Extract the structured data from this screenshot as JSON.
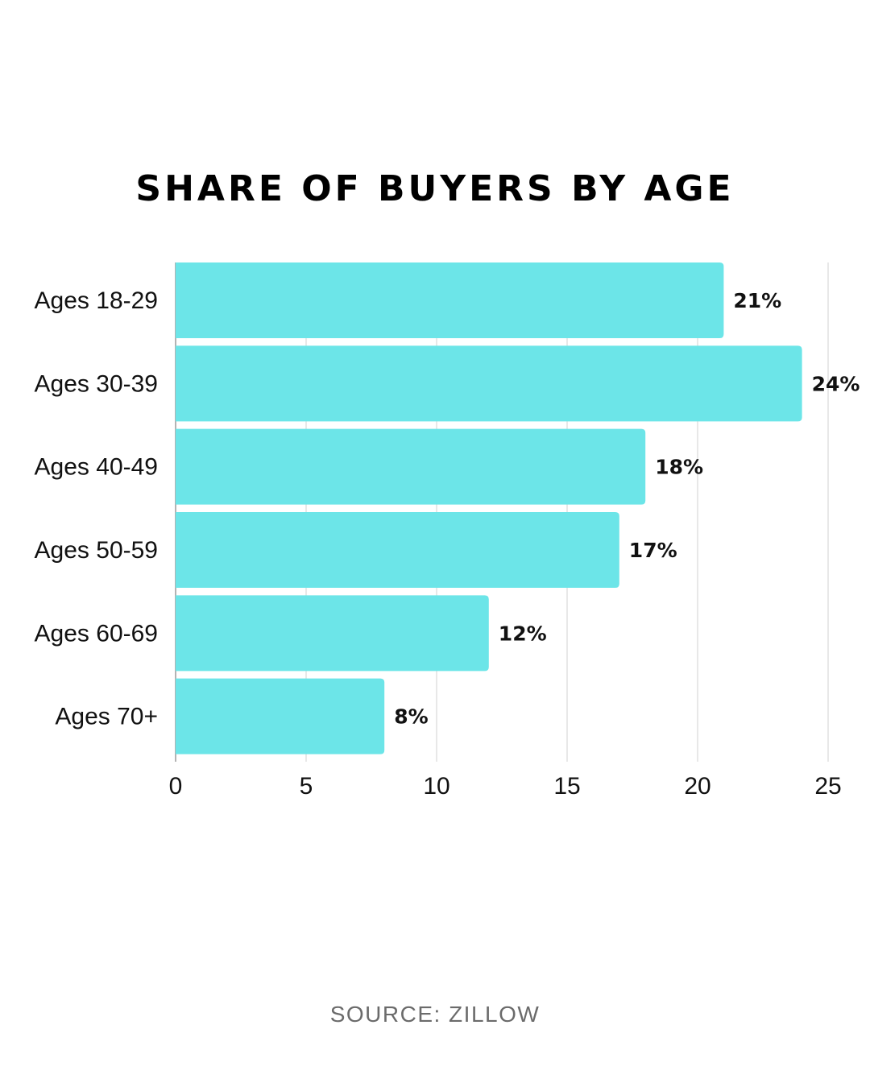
{
  "chart_data": {
    "type": "bar",
    "orientation": "horizontal",
    "title": "SHARE OF BUYERS BY AGE",
    "categories": [
      "Ages 18-29",
      "Ages 30-39",
      "Ages 40-49",
      "Ages 50-59",
      "Ages 60-69",
      "Ages 70+"
    ],
    "values": [
      21,
      24,
      18,
      17,
      12,
      8
    ],
    "data_labels": [
      "21%",
      "24%",
      "18%",
      "17%",
      "12%",
      "8%"
    ],
    "xlim": [
      0,
      25
    ],
    "xticks": [
      0,
      5,
      10,
      15,
      20,
      25
    ],
    "xlabel": "",
    "ylabel": "",
    "grid": "vertical",
    "legend": "none",
    "bar_color": "#6ce5e8",
    "grid_color": "#d9d9d9"
  },
  "source": "SOURCE: ZILLOW"
}
